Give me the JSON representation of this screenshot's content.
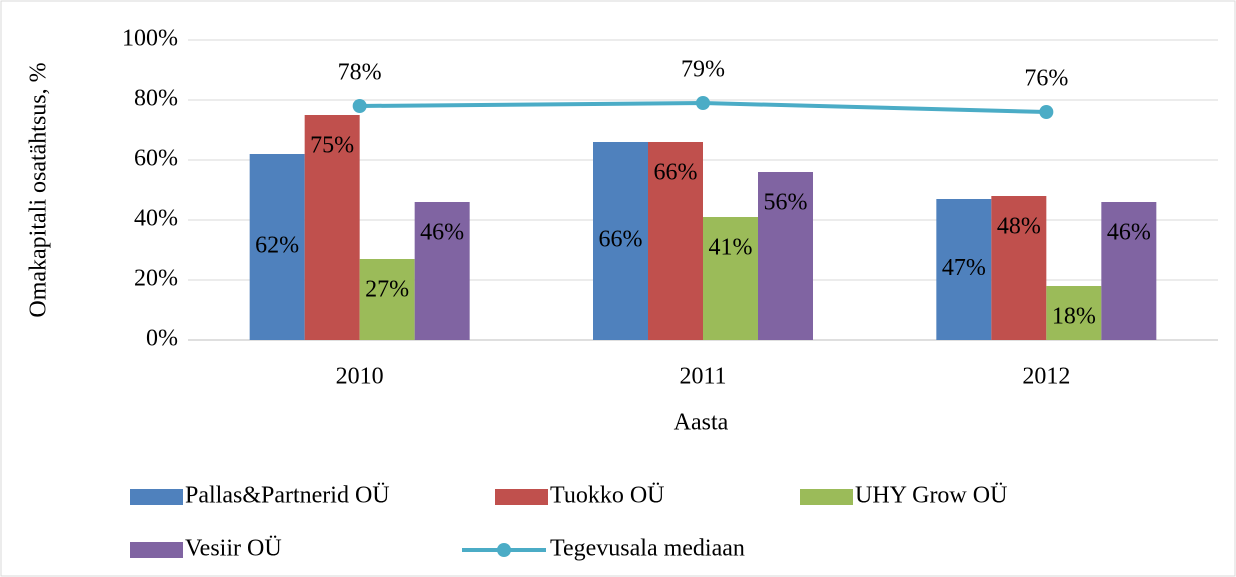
{
  "chart_data": {
    "type": "bar",
    "y_label": "Omakapitali osatähtsus, %",
    "x_label": "Aasta",
    "categories": [
      "2010",
      "2011",
      "2012"
    ],
    "series": [
      {
        "name": "Pallas&Partnerid OÜ",
        "type": "bar",
        "color": "#4f81bd",
        "values": [
          62,
          66,
          47
        ],
        "value_labels": [
          "62%",
          "66%",
          "47%"
        ]
      },
      {
        "name": "Tuokko OÜ",
        "type": "bar",
        "color": "#c0504d",
        "values": [
          75,
          66,
          48
        ],
        "value_labels": [
          "75%",
          "66%",
          "48%"
        ]
      },
      {
        "name": "UHY Grow OÜ",
        "type": "bar",
        "color": "#9bbb59",
        "values": [
          27,
          41,
          18
        ],
        "value_labels": [
          "27%",
          "41%",
          "18%"
        ]
      },
      {
        "name": "Vesiir OÜ",
        "type": "bar",
        "color": "#8064a2",
        "values": [
          46,
          56,
          46
        ],
        "value_labels": [
          "46%",
          "56%",
          "46%"
        ]
      },
      {
        "name": "Tegevusala mediaan",
        "type": "line",
        "color": "#4bacc6",
        "values": [
          78,
          79,
          76
        ],
        "value_labels": [
          "78%",
          "79%",
          "76%"
        ]
      }
    ],
    "ylim": [
      0,
      100
    ],
    "yticks": [
      {
        "value": 0,
        "label": "0%"
      },
      {
        "value": 20,
        "label": "20%"
      },
      {
        "value": 40,
        "label": "40%"
      },
      {
        "value": 60,
        "label": "60%"
      },
      {
        "value": 80,
        "label": "80%"
      },
      {
        "value": 100,
        "label": "100%"
      }
    ],
    "grid": true,
    "legend": "bottom"
  }
}
